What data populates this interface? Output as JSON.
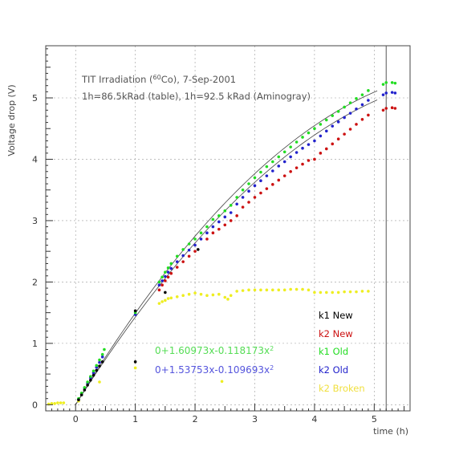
{
  "chart_data": {
    "type": "scatter",
    "xlabel": "time (h)",
    "ylabel": "Voltage drop (V)",
    "xlim": [
      -0.5,
      5.6
    ],
    "ylim": [
      -0.1,
      5.85
    ],
    "x_ticks": [
      0,
      1,
      2,
      3,
      4,
      5
    ],
    "y_ticks": [
      0,
      1,
      2,
      3,
      4,
      5
    ],
    "grid": true,
    "annotation_line1_pre": "TIT Irradiation (",
    "annotation_line1_sup": "60",
    "annotation_line1_post": "Co), 7-Sep-2001",
    "annotation_line2": "1h=86.5kRad (table), 1h=92.5 kRad (Aminogray)",
    "fits": [
      {
        "label_base": "0+1.60973x-0.118173x",
        "label_sup": "2",
        "a": 0,
        "b": 1.60973,
        "c": -0.118173,
        "color": "#22cc22",
        "x_range": [
          0,
          5.05
        ]
      },
      {
        "label_base": "0+1.53753x-0.109693x",
        "label_sup": "2",
        "a": 0,
        "b": 1.53753,
        "c": -0.109693,
        "color": "#3333dd",
        "x_range": [
          0,
          5.05
        ]
      }
    ],
    "vline_x": 5.2,
    "series": [
      {
        "name": "k1 New",
        "color": "#000000",
        "points": [
          [
            0.05,
            0.08
          ],
          [
            0.1,
            0.16
          ],
          [
            0.15,
            0.24
          ],
          [
            0.2,
            0.32
          ],
          [
            0.25,
            0.4
          ],
          [
            0.3,
            0.48
          ],
          [
            0.35,
            0.56
          ],
          [
            0.4,
            0.63
          ],
          [
            0.45,
            0.7
          ],
          [
            1.0,
            1.53
          ],
          [
            1.0,
            0.7
          ],
          [
            1.5,
            1.83
          ],
          [
            2.05,
            2.53
          ]
        ]
      },
      {
        "name": "k2 New",
        "color": "#cc1111",
        "points": [
          [
            1.4,
            1.87
          ],
          [
            1.45,
            1.95
          ],
          [
            1.5,
            2.02
          ],
          [
            1.55,
            2.08
          ],
          [
            1.6,
            2.14
          ],
          [
            1.7,
            2.24
          ],
          [
            1.8,
            2.33
          ],
          [
            1.9,
            2.42
          ],
          [
            2.0,
            2.5
          ],
          [
            2.2,
            2.7
          ],
          [
            2.3,
            2.8
          ],
          [
            2.4,
            2.86
          ],
          [
            2.5,
            2.93
          ],
          [
            2.6,
            3.0
          ],
          [
            2.7,
            3.08
          ],
          [
            2.8,
            3.22
          ],
          [
            2.9,
            3.3
          ],
          [
            3.0,
            3.38
          ],
          [
            3.1,
            3.45
          ],
          [
            3.2,
            3.52
          ],
          [
            3.3,
            3.59
          ],
          [
            3.4,
            3.66
          ],
          [
            3.5,
            3.73
          ],
          [
            3.6,
            3.8
          ],
          [
            3.7,
            3.86
          ],
          [
            3.8,
            3.92
          ],
          [
            3.9,
            3.98
          ],
          [
            4.0,
            4.0
          ],
          [
            4.1,
            4.1
          ],
          [
            4.2,
            4.17
          ],
          [
            4.3,
            4.25
          ],
          [
            4.4,
            4.33
          ],
          [
            4.5,
            4.41
          ],
          [
            4.6,
            4.49
          ],
          [
            4.7,
            4.57
          ],
          [
            4.8,
            4.65
          ],
          [
            4.9,
            4.72
          ],
          [
            5.15,
            4.8
          ],
          [
            5.2,
            4.83
          ],
          [
            5.3,
            4.84
          ],
          [
            5.35,
            4.83
          ]
        ]
      },
      {
        "name": "k1 Old",
        "color": "#22dd22",
        "points": [
          [
            0.05,
            0.1
          ],
          [
            0.1,
            0.19
          ],
          [
            0.15,
            0.28
          ],
          [
            0.2,
            0.37
          ],
          [
            0.25,
            0.46
          ],
          [
            0.3,
            0.55
          ],
          [
            0.35,
            0.64
          ],
          [
            0.4,
            0.73
          ],
          [
            0.45,
            0.82
          ],
          [
            0.48,
            0.9
          ],
          [
            1.0,
            1.5
          ],
          [
            1.4,
            2.0
          ],
          [
            1.45,
            2.08
          ],
          [
            1.5,
            2.16
          ],
          [
            1.55,
            2.23
          ],
          [
            1.6,
            2.3
          ],
          [
            1.7,
            2.42
          ],
          [
            1.8,
            2.53
          ],
          [
            1.9,
            2.62
          ],
          [
            2.0,
            2.7
          ],
          [
            2.1,
            2.8
          ],
          [
            2.2,
            2.9
          ],
          [
            2.3,
            3.02
          ],
          [
            2.4,
            3.08
          ],
          [
            2.5,
            3.16
          ],
          [
            2.6,
            3.25
          ],
          [
            2.7,
            3.38
          ],
          [
            2.8,
            3.5
          ],
          [
            2.9,
            3.6
          ],
          [
            3.0,
            3.7
          ],
          [
            3.1,
            3.79
          ],
          [
            3.2,
            3.88
          ],
          [
            3.3,
            3.96
          ],
          [
            3.4,
            4.04
          ],
          [
            3.5,
            4.12
          ],
          [
            3.6,
            4.2
          ],
          [
            3.7,
            4.28
          ],
          [
            3.8,
            4.36
          ],
          [
            3.9,
            4.43
          ],
          [
            4.0,
            4.5
          ],
          [
            4.1,
            4.57
          ],
          [
            4.2,
            4.64
          ],
          [
            4.3,
            4.71
          ],
          [
            4.4,
            4.78
          ],
          [
            4.5,
            4.85
          ],
          [
            4.6,
            4.92
          ],
          [
            4.7,
            4.99
          ],
          [
            4.8,
            5.05
          ],
          [
            4.9,
            5.12
          ],
          [
            5.15,
            5.22
          ],
          [
            5.2,
            5.25
          ],
          [
            5.3,
            5.25
          ],
          [
            5.35,
            5.24
          ]
        ]
      },
      {
        "name": "k2 Old",
        "color": "#2222cc",
        "points": [
          [
            0.05,
            0.09
          ],
          [
            0.1,
            0.18
          ],
          [
            0.15,
            0.27
          ],
          [
            0.2,
            0.35
          ],
          [
            0.25,
            0.44
          ],
          [
            0.3,
            0.52
          ],
          [
            0.35,
            0.61
          ],
          [
            0.4,
            0.69
          ],
          [
            0.45,
            0.78
          ],
          [
            1.0,
            1.47
          ],
          [
            1.4,
            1.95
          ],
          [
            1.45,
            2.02
          ],
          [
            1.5,
            2.09
          ],
          [
            1.55,
            2.16
          ],
          [
            1.6,
            2.22
          ],
          [
            1.7,
            2.33
          ],
          [
            1.8,
            2.43
          ],
          [
            1.9,
            2.52
          ],
          [
            2.0,
            2.6
          ],
          [
            2.1,
            2.7
          ],
          [
            2.2,
            2.8
          ],
          [
            2.3,
            2.9
          ],
          [
            2.4,
            2.98
          ],
          [
            2.5,
            3.06
          ],
          [
            2.6,
            3.13
          ],
          [
            2.7,
            3.27
          ],
          [
            2.8,
            3.38
          ],
          [
            2.9,
            3.48
          ],
          [
            3.0,
            3.57
          ],
          [
            3.1,
            3.65
          ],
          [
            3.2,
            3.73
          ],
          [
            3.3,
            3.81
          ],
          [
            3.4,
            3.89
          ],
          [
            3.5,
            3.96
          ],
          [
            3.6,
            4.04
          ],
          [
            3.7,
            4.11
          ],
          [
            3.8,
            4.18
          ],
          [
            3.9,
            4.24
          ],
          [
            4.0,
            4.3
          ],
          [
            4.1,
            4.38
          ],
          [
            4.2,
            4.46
          ],
          [
            4.3,
            4.54
          ],
          [
            4.4,
            4.61
          ],
          [
            4.5,
            4.68
          ],
          [
            4.6,
            4.75
          ],
          [
            4.7,
            4.82
          ],
          [
            4.8,
            4.89
          ],
          [
            4.9,
            4.96
          ],
          [
            5.15,
            5.05
          ],
          [
            5.2,
            5.08
          ],
          [
            5.3,
            5.09
          ],
          [
            5.35,
            5.08
          ]
        ]
      },
      {
        "name": "k2 Broken",
        "color": "#eeee22",
        "points": [
          [
            -0.45,
            0.01
          ],
          [
            -0.4,
            0.02
          ],
          [
            -0.35,
            0.02
          ],
          [
            -0.3,
            0.03
          ],
          [
            -0.25,
            0.03
          ],
          [
            -0.2,
            0.03
          ],
          [
            0.05,
            0.06
          ],
          [
            0.4,
            0.37
          ],
          [
            1.0,
            0.6
          ],
          [
            1.4,
            1.65
          ],
          [
            1.45,
            1.68
          ],
          [
            1.5,
            1.7
          ],
          [
            1.55,
            1.73
          ],
          [
            1.6,
            1.74
          ],
          [
            1.7,
            1.76
          ],
          [
            1.8,
            1.78
          ],
          [
            1.9,
            1.8
          ],
          [
            2.0,
            1.82
          ],
          [
            2.1,
            1.8
          ],
          [
            2.2,
            1.78
          ],
          [
            2.3,
            1.79
          ],
          [
            2.4,
            1.8
          ],
          [
            2.45,
            0.38
          ],
          [
            2.5,
            1.75
          ],
          [
            2.55,
            1.72
          ],
          [
            2.6,
            1.78
          ],
          [
            2.7,
            1.85
          ],
          [
            2.8,
            1.86
          ],
          [
            2.9,
            1.87
          ],
          [
            3.0,
            1.87
          ],
          [
            3.1,
            1.87
          ],
          [
            3.2,
            1.87
          ],
          [
            3.3,
            1.87
          ],
          [
            3.4,
            1.87
          ],
          [
            3.5,
            1.87
          ],
          [
            3.6,
            1.88
          ],
          [
            3.7,
            1.88
          ],
          [
            3.8,
            1.88
          ],
          [
            3.9,
            1.87
          ],
          [
            4.0,
            1.83
          ],
          [
            4.1,
            1.83
          ],
          [
            4.2,
            1.83
          ],
          [
            4.3,
            1.83
          ],
          [
            4.4,
            1.83
          ],
          [
            4.5,
            1.84
          ],
          [
            4.6,
            1.84
          ],
          [
            4.7,
            1.84
          ],
          [
            4.8,
            1.85
          ],
          [
            4.9,
            1.85
          ]
        ]
      }
    ]
  }
}
